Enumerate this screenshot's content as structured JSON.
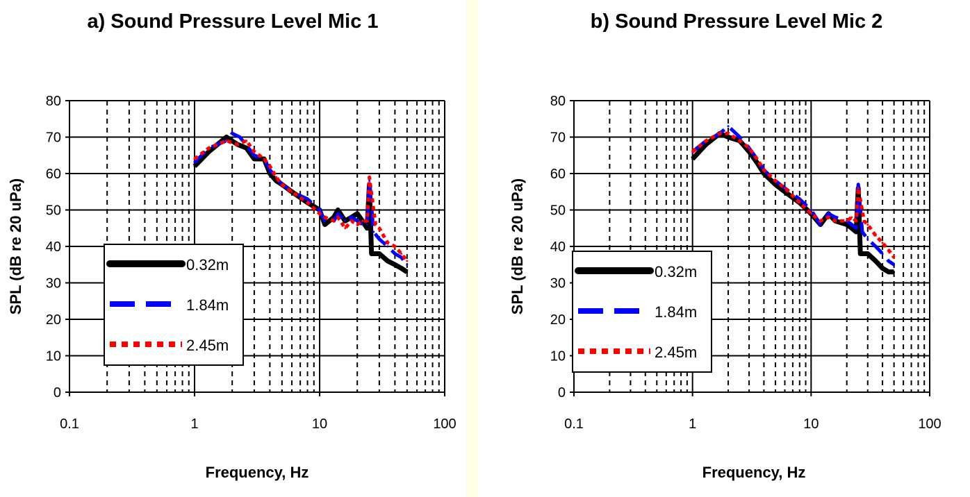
{
  "chart_data": [
    {
      "type": "line",
      "title": "a) Sound Pressure Level Mic 1",
      "xlabel": "Frequency, Hz",
      "ylabel": "SPL (dB re 20 uPa)",
      "xscale": "log",
      "xlim": [
        0.1,
        100
      ],
      "ylim": [
        0,
        80
      ],
      "xticks": [
        "0.1",
        "1",
        "10",
        "100"
      ],
      "yticks": [
        "0",
        "10",
        "20",
        "30",
        "40",
        "50",
        "60",
        "70",
        "80"
      ],
      "grid": true,
      "legend": "lower-left",
      "series": [
        {
          "name": "0.32m",
          "color": "#000000",
          "style": "solid",
          "x": [
            1,
            1.3,
            1.8,
            2.2,
            2.6,
            3,
            3.6,
            4,
            4.5,
            5,
            6,
            8,
            10,
            11,
            13,
            14,
            16,
            18,
            20,
            22,
            24,
            25,
            26,
            30,
            35,
            40,
            45,
            50
          ],
          "y": [
            62,
            66,
            70,
            68,
            67,
            64,
            64,
            60,
            58,
            57,
            55,
            52,
            50,
            46,
            48,
            50,
            47,
            48,
            49,
            47,
            45,
            57,
            38,
            38,
            36,
            35,
            34,
            33
          ]
        },
        {
          "name": "1.84m",
          "color": "#0000ff",
          "style": "dashed",
          "x": [
            1,
            1.3,
            1.8,
            2,
            2.3,
            3,
            3.6,
            4,
            4.5,
            5,
            6,
            8,
            10,
            11,
            13,
            14,
            16,
            18,
            20,
            22,
            24,
            25,
            27,
            30,
            35,
            40,
            45,
            50
          ],
          "y": [
            63,
            67,
            69,
            71,
            70,
            65,
            64,
            61,
            59,
            57,
            55,
            53,
            50,
            47,
            47,
            49,
            47,
            48,
            47,
            46,
            46,
            58,
            44,
            42,
            40,
            38,
            37,
            35
          ]
        },
        {
          "name": "2.45m",
          "color": "#ff0000",
          "style": "dotted",
          "x": [
            1,
            1.3,
            1.8,
            2.2,
            2.6,
            3,
            3.6,
            4,
            4.5,
            5,
            6,
            8,
            10,
            11,
            13,
            14,
            16,
            18,
            20,
            22,
            24,
            25,
            28,
            30,
            35,
            40,
            45,
            50
          ],
          "y": [
            64,
            67,
            69,
            68,
            69,
            66,
            64,
            62,
            59,
            57,
            55,
            52,
            49,
            48,
            47,
            48,
            45,
            47,
            46,
            47,
            47,
            59,
            46,
            45,
            41,
            40,
            38,
            36
          ]
        }
      ]
    },
    {
      "type": "line",
      "title": "b) Sound Pressure Level Mic 2",
      "xlabel": "Frequency, Hz",
      "ylabel": "SPL (dB re 20 uPa)",
      "xscale": "log",
      "xlim": [
        0.1,
        100
      ],
      "ylim": [
        0,
        80
      ],
      "xticks": [
        "0.1",
        "1",
        "10",
        "100"
      ],
      "yticks": [
        "0",
        "10",
        "20",
        "30",
        "40",
        "50",
        "60",
        "70",
        "80"
      ],
      "grid": true,
      "legend": "lower-left",
      "series": [
        {
          "name": "0.32m",
          "color": "#000000",
          "style": "solid",
          "x": [
            1,
            1.3,
            1.7,
            2,
            2.5,
            3,
            3.5,
            4,
            5,
            6,
            8,
            10,
            12,
            14,
            16,
            20,
            22,
            24,
            25,
            26,
            30,
            35,
            40,
            45,
            50
          ],
          "y": [
            64,
            68,
            71,
            70,
            69,
            66,
            63,
            60,
            57,
            55,
            52,
            49,
            46,
            49,
            47,
            46,
            45,
            44,
            56,
            38,
            38,
            36,
            34,
            33,
            33
          ]
        },
        {
          "name": "1.84m",
          "color": "#0000ff",
          "style": "dashed",
          "x": [
            1,
            1.3,
            1.7,
            2,
            2.5,
            3,
            3.5,
            4,
            5,
            6,
            8,
            10,
            12,
            14,
            16,
            20,
            22,
            24,
            25,
            27,
            30,
            35,
            40,
            45,
            50
          ],
          "y": [
            66,
            69,
            71,
            73,
            70,
            67,
            64,
            61,
            58,
            56,
            53,
            50,
            46,
            49,
            48,
            47,
            46,
            45,
            57,
            44,
            42,
            40,
            38,
            36,
            35
          ]
        },
        {
          "name": "2.45m",
          "color": "#ff0000",
          "style": "dotted",
          "x": [
            1,
            1.3,
            1.7,
            2,
            2.5,
            3,
            3.5,
            4,
            5,
            6,
            8,
            10,
            12,
            14,
            16,
            20,
            22,
            24,
            25,
            28,
            30,
            35,
            40,
            45,
            50
          ],
          "y": [
            66,
            69,
            71,
            71,
            69,
            67,
            64,
            61,
            58,
            56,
            52,
            49,
            47,
            48,
            47,
            47,
            48,
            47,
            56,
            47,
            46,
            43,
            41,
            39,
            37
          ]
        }
      ]
    }
  ]
}
